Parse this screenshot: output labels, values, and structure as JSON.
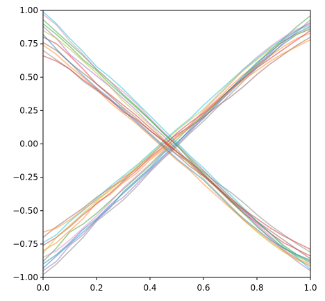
{
  "chart_data": {
    "type": "line",
    "title": "",
    "xlabel": "",
    "ylabel": "",
    "xlim": [
      0,
      1
    ],
    "ylim": [
      -1,
      1
    ],
    "x_ticks": [
      0.0,
      0.2,
      0.4,
      0.6,
      0.8,
      1.0
    ],
    "y_ticks": [
      -1.0,
      -0.75,
      -0.5,
      -0.25,
      0.0,
      0.25,
      0.5,
      0.75,
      1.0
    ],
    "x_tick_labels": [
      "0.0",
      "0.2",
      "0.4",
      "0.6",
      "0.8",
      "1.0"
    ],
    "y_tick_labels": [
      "−1.00",
      "−0.75",
      "−0.50",
      "−0.25",
      "0.00",
      "0.25",
      "0.50",
      "0.75",
      "1.00"
    ],
    "grid": false,
    "legend": "none",
    "alpha": 0.5,
    "palette": [
      "#1f77b4",
      "#ff7f0e",
      "#2ca02c",
      "#d62728",
      "#9467bd",
      "#8c564b",
      "#e377c2",
      "#7f7f7f",
      "#bcbd22",
      "#17becf"
    ],
    "series_x": [
      0.0,
      0.05,
      0.1,
      0.15,
      0.2,
      0.25,
      0.3,
      0.35,
      0.4,
      0.45,
      0.5,
      0.55,
      0.6,
      0.65,
      0.7,
      0.75,
      0.8,
      0.85,
      0.9,
      0.95,
      1.0
    ],
    "series": [
      {
        "values": [
          -0.93,
          -0.84,
          -0.75,
          -0.66,
          -0.57,
          -0.48,
          -0.36,
          -0.27,
          -0.18,
          -0.07,
          0.01,
          0.1,
          0.19,
          0.3,
          0.39,
          0.49,
          0.58,
          0.67,
          0.75,
          0.82,
          0.86
        ]
      },
      {
        "values": [
          -0.8,
          -0.74,
          -0.65,
          -0.56,
          -0.44,
          -0.38,
          -0.29,
          -0.22,
          -0.12,
          -0.04,
          0.06,
          0.14,
          0.24,
          0.33,
          0.43,
          0.52,
          0.59,
          0.66,
          0.73,
          0.79,
          0.83
        ]
      },
      {
        "values": [
          -0.88,
          -0.78,
          -0.66,
          -0.6,
          -0.52,
          -0.43,
          -0.34,
          -0.25,
          -0.16,
          -0.06,
          0.03,
          0.13,
          0.22,
          0.31,
          0.41,
          0.5,
          0.6,
          0.7,
          0.79,
          0.88,
          0.96
        ]
      },
      {
        "values": [
          -0.76,
          -0.7,
          -0.62,
          -0.53,
          -0.45,
          -0.37,
          -0.28,
          -0.2,
          -0.1,
          -0.02,
          0.08,
          0.16,
          0.23,
          0.32,
          0.41,
          0.49,
          0.57,
          0.64,
          0.71,
          0.78,
          0.85
        ]
      },
      {
        "values": [
          -0.95,
          -0.88,
          -0.76,
          -0.68,
          -0.57,
          -0.47,
          -0.4,
          -0.3,
          -0.2,
          -0.1,
          -0.01,
          0.09,
          0.2,
          0.29,
          0.4,
          0.49,
          0.59,
          0.68,
          0.78,
          0.85,
          0.91
        ]
      },
      {
        "values": [
          -0.7,
          -0.62,
          -0.55,
          -0.48,
          -0.4,
          -0.33,
          -0.27,
          -0.18,
          -0.09,
          0.0,
          0.07,
          0.13,
          0.2,
          0.28,
          0.35,
          0.43,
          0.52,
          0.6,
          0.67,
          0.74,
          0.8
        ]
      },
      {
        "values": [
          -0.85,
          -0.8,
          -0.72,
          -0.63,
          -0.54,
          -0.44,
          -0.33,
          -0.24,
          -0.15,
          -0.05,
          0.05,
          0.14,
          0.25,
          0.35,
          0.45,
          0.56,
          0.65,
          0.73,
          0.8,
          0.86,
          0.9
        ]
      },
      {
        "values": [
          -0.98,
          -0.9,
          -0.8,
          -0.7,
          -0.58,
          -0.5,
          -0.42,
          -0.32,
          -0.21,
          -0.11,
          -0.02,
          0.08,
          0.17,
          0.27,
          0.37,
          0.47,
          0.57,
          0.66,
          0.76,
          0.84,
          0.93
        ]
      },
      {
        "values": [
          -0.82,
          -0.7,
          -0.61,
          -0.52,
          -0.43,
          -0.35,
          -0.26,
          -0.17,
          -0.08,
          0.01,
          0.1,
          0.18,
          0.26,
          0.36,
          0.46,
          0.55,
          0.63,
          0.71,
          0.77,
          0.82,
          0.87
        ]
      },
      {
        "values": [
          -0.74,
          -0.68,
          -0.58,
          -0.5,
          -0.41,
          -0.32,
          -0.24,
          -0.16,
          -0.07,
          0.02,
          0.11,
          0.19,
          0.29,
          0.38,
          0.47,
          0.56,
          0.64,
          0.72,
          0.79,
          0.85,
          0.89
        ]
      },
      {
        "values": [
          -0.9,
          -0.83,
          -0.74,
          -0.64,
          -0.56,
          -0.46,
          -0.37,
          -0.28,
          -0.19,
          -0.09,
          0.0,
          0.11,
          0.21,
          0.31,
          0.41,
          0.51,
          0.61,
          0.69,
          0.77,
          0.83,
          0.88
        ]
      },
      {
        "values": [
          -0.66,
          -0.63,
          -0.57,
          -0.49,
          -0.42,
          -0.34,
          -0.25,
          -0.19,
          -0.11,
          -0.03,
          0.05,
          0.12,
          0.22,
          0.31,
          0.4,
          0.48,
          0.55,
          0.62,
          0.68,
          0.73,
          0.78
        ]
      },
      {
        "values": [
          0.93,
          0.84,
          0.75,
          0.66,
          0.56,
          0.47,
          0.37,
          0.28,
          0.18,
          0.08,
          -0.01,
          -0.11,
          -0.2,
          -0.3,
          -0.4,
          -0.49,
          -0.58,
          -0.67,
          -0.76,
          -0.83,
          -0.87
        ]
      },
      {
        "values": [
          0.8,
          0.75,
          0.66,
          0.56,
          0.45,
          0.37,
          0.29,
          0.21,
          0.12,
          0.03,
          -0.06,
          -0.15,
          -0.24,
          -0.33,
          -0.43,
          -0.52,
          -0.59,
          -0.67,
          -0.74,
          -0.79,
          -0.84
        ]
      },
      {
        "values": [
          0.88,
          0.79,
          0.67,
          0.59,
          0.51,
          0.43,
          0.34,
          0.25,
          0.15,
          0.06,
          -0.04,
          -0.14,
          -0.23,
          -0.32,
          -0.42,
          -0.51,
          -0.61,
          -0.71,
          -0.8,
          -0.88,
          -0.95
        ]
      },
      {
        "values": [
          0.76,
          0.7,
          0.61,
          0.53,
          0.45,
          0.36,
          0.27,
          0.19,
          0.1,
          0.02,
          -0.08,
          -0.17,
          -0.24,
          -0.33,
          -0.42,
          -0.5,
          -0.58,
          -0.65,
          -0.72,
          -0.79,
          -0.86
        ]
      },
      {
        "values": [
          0.97,
          0.89,
          0.77,
          0.67,
          0.56,
          0.47,
          0.39,
          0.3,
          0.19,
          0.09,
          0.0,
          -0.1,
          -0.2,
          -0.3,
          -0.4,
          -0.5,
          -0.6,
          -0.69,
          -0.79,
          -0.86,
          -0.92
        ]
      },
      {
        "values": [
          0.7,
          0.63,
          0.56,
          0.47,
          0.4,
          0.33,
          0.26,
          0.17,
          0.08,
          -0.01,
          -0.08,
          -0.14,
          -0.21,
          -0.29,
          -0.36,
          -0.44,
          -0.53,
          -0.61,
          -0.68,
          -0.75,
          -0.81
        ]
      },
      {
        "values": [
          0.85,
          0.79,
          0.71,
          0.62,
          0.53,
          0.43,
          0.32,
          0.23,
          0.14,
          0.04,
          -0.05,
          -0.15,
          -0.26,
          -0.36,
          -0.46,
          -0.57,
          -0.66,
          -0.74,
          -0.81,
          -0.87,
          -0.91
        ]
      },
      {
        "values": [
          0.99,
          0.9,
          0.79,
          0.69,
          0.58,
          0.5,
          0.41,
          0.31,
          0.21,
          0.11,
          0.01,
          -0.09,
          -0.18,
          -0.28,
          -0.38,
          -0.48,
          -0.58,
          -0.67,
          -0.77,
          -0.85,
          -0.94
        ]
      },
      {
        "values": [
          0.82,
          0.71,
          0.61,
          0.51,
          0.42,
          0.34,
          0.25,
          0.16,
          0.07,
          -0.02,
          -0.11,
          -0.19,
          -0.27,
          -0.37,
          -0.47,
          -0.56,
          -0.64,
          -0.72,
          -0.78,
          -0.83,
          -0.88
        ]
      },
      {
        "values": [
          0.74,
          0.67,
          0.58,
          0.5,
          0.41,
          0.31,
          0.23,
          0.15,
          0.06,
          -0.03,
          -0.12,
          -0.2,
          -0.3,
          -0.39,
          -0.48,
          -0.57,
          -0.65,
          -0.73,
          -0.8,
          -0.86,
          -0.9
        ]
      },
      {
        "values": [
          0.9,
          0.82,
          0.73,
          0.63,
          0.55,
          0.45,
          0.36,
          0.27,
          0.18,
          0.08,
          -0.01,
          -0.12,
          -0.22,
          -0.32,
          -0.42,
          -0.52,
          -0.62,
          -0.7,
          -0.78,
          -0.84,
          -0.89
        ]
      },
      {
        "values": [
          0.66,
          0.62,
          0.56,
          0.48,
          0.41,
          0.33,
          0.24,
          0.18,
          0.1,
          0.02,
          -0.06,
          -0.13,
          -0.23,
          -0.32,
          -0.41,
          -0.49,
          -0.56,
          -0.63,
          -0.69,
          -0.74,
          -0.79
        ]
      }
    ]
  }
}
